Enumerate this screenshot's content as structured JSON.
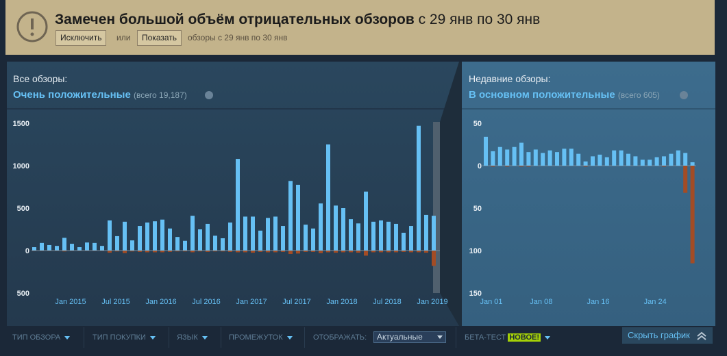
{
  "banner": {
    "title": "Замечен большой объём отрицательных обзоров",
    "range": "с 29 янв по 30 янв",
    "exclude": "Исключить",
    "or": "или",
    "show": "Показать",
    "note": "обзоры с 29 янв по 30 янв"
  },
  "chart_data": [
    {
      "type": "bar",
      "title": "Все обзоры:",
      "rating": "Очень положительные",
      "total": "(всего 19,187)",
      "categories": [
        null,
        null,
        null,
        null,
        null,
        "Jan 2015",
        null,
        null,
        null,
        null,
        null,
        "Jul 2015",
        null,
        null,
        null,
        null,
        null,
        "Jan 2016",
        null,
        null,
        null,
        null,
        null,
        "Jul 2016",
        null,
        null,
        null,
        null,
        null,
        "Jan 2017",
        null,
        null,
        null,
        null,
        null,
        "Jul 2017",
        null,
        null,
        null,
        null,
        null,
        "Jan 2018",
        null,
        null,
        null,
        null,
        null,
        "Jul 2018",
        null,
        null,
        null,
        null,
        null,
        "Jan 2019"
      ],
      "series": [
        {
          "color": "#66c0f4",
          "values": [
            40,
            90,
            65,
            55,
            150,
            80,
            40,
            95,
            90,
            55,
            355,
            170,
            340,
            120,
            290,
            330,
            345,
            365,
            260,
            160,
            115,
            410,
            250,
            315,
            175,
            145,
            330,
            1080,
            400,
            400,
            235,
            385,
            400,
            290,
            820,
            775,
            305,
            260,
            555,
            1250,
            530,
            500,
            370,
            320,
            695,
            340,
            355,
            340,
            315,
            210,
            290,
            1470,
            420,
            410
          ]
        },
        {
          "color": "#a34c25",
          "values": [
            -5,
            -5,
            -5,
            -5,
            -10,
            -5,
            -5,
            -5,
            -5,
            -5,
            -25,
            -10,
            -30,
            -10,
            -15,
            -20,
            -20,
            -20,
            -15,
            -10,
            -10,
            -20,
            -10,
            -15,
            -10,
            -10,
            -15,
            -20,
            -20,
            -25,
            -15,
            -20,
            -20,
            -15,
            -40,
            -35,
            -15,
            -15,
            -30,
            -20,
            -25,
            -20,
            -20,
            -25,
            -60,
            -20,
            -20,
            -20,
            -20,
            -15,
            -20,
            -20,
            -25,
            -180
          ]
        }
      ],
      "ylim": [
        -500,
        1500
      ],
      "yticks": [
        1500,
        1000,
        500,
        0,
        {
          "value": -500,
          "label": "500"
        }
      ]
    },
    {
      "type": "bar",
      "title": "Недавние обзоры:",
      "rating": "В основном положительные",
      "total": "(всего 605)",
      "categories": [
        "Jan 01",
        null,
        null,
        null,
        null,
        null,
        null,
        "Jan 08",
        null,
        null,
        null,
        null,
        null,
        null,
        null,
        "Jan 16",
        null,
        null,
        null,
        null,
        null,
        null,
        null,
        "Jan 24",
        null,
        null,
        null,
        null,
        null,
        null
      ],
      "series": [
        {
          "color": "#66c0f4",
          "values": [
            34,
            17,
            22,
            19,
            22,
            27,
            16,
            19,
            15,
            18,
            16,
            20,
            20,
            14,
            5,
            11,
            13,
            10,
            18,
            18,
            14,
            11,
            7,
            7,
            10,
            11,
            14,
            18,
            15,
            4
          ]
        },
        {
          "color": "#a34c25",
          "values": [
            0,
            -1,
            0,
            -1,
            0,
            -1,
            -1,
            0,
            0,
            0,
            0,
            0,
            0,
            0,
            -1,
            0,
            0,
            0,
            0,
            0,
            0,
            0,
            0,
            0,
            0,
            -1,
            0,
            0,
            -32,
            -115
          ]
        }
      ],
      "ylim": [
        -150,
        50
      ],
      "yticks": [
        50,
        0,
        {
          "value": -50,
          "label": "50"
        },
        {
          "value": -100,
          "label": "100"
        },
        {
          "value": -150,
          "label": "150"
        }
      ]
    }
  ],
  "filters": [
    "ТИП ОБЗОРА",
    "ТИП ПОКУПКИ",
    "ЯЗЫК",
    "ПРОМЕЖУТОК"
  ],
  "display": {
    "label": "ОТОБРАЖАТЬ:",
    "value": "Актуальные"
  },
  "beta": {
    "label": "БЕТА-ТЕСТ",
    "badge": "НОВОЕ!"
  },
  "hide_chart": "Скрыть график"
}
